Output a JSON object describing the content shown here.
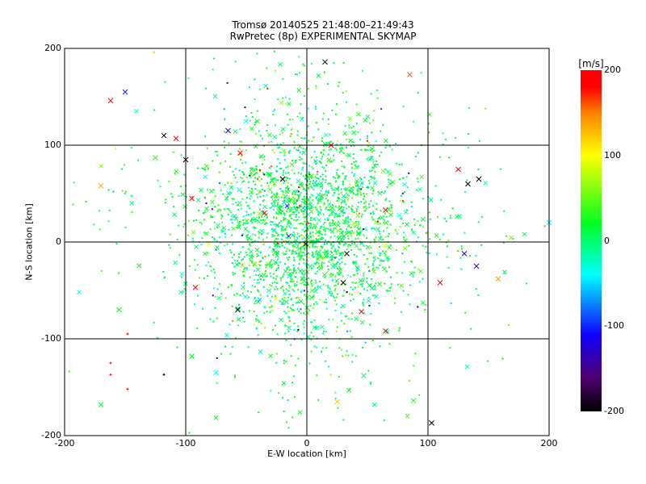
{
  "chart_data": {
    "type": "scatter",
    "title": "Tromsø 20140525 21:48:00–21:49:43",
    "subtitle": "RwPretec (8p) EXPERIMENTAL SKYMAP",
    "xlabel": "E-W location [km]",
    "ylabel": "N-S location [km]",
    "xlim": [
      -200,
      200
    ],
    "ylim": [
      -200,
      200
    ],
    "xticks": [
      "-200",
      "-100",
      "0",
      "100",
      "200"
    ],
    "yticks": [
      "-200",
      "-100",
      "0",
      "100",
      "200"
    ],
    "grid_lines_km": [
      -100,
      0,
      100
    ],
    "colorbar": {
      "label": "[m/s]",
      "range": [
        -200,
        200
      ],
      "ticks": [
        "200",
        "100",
        "0",
        "-100",
        "-200"
      ],
      "stops": [
        [
          -200,
          "#000000"
        ],
        [
          -160,
          "#500070"
        ],
        [
          -110,
          "#1000ff"
        ],
        [
          -40,
          "#00ffff"
        ],
        [
          20,
          "#00ff20"
        ],
        [
          100,
          "#ffff00"
        ],
        [
          150,
          "#ff8000"
        ],
        [
          180,
          "#ff0000"
        ],
        [
          200,
          "#ff0000"
        ]
      ]
    },
    "cloud": {
      "n": 2600,
      "center_km": [
        0,
        15
      ],
      "spread_km": [
        40,
        55
      ],
      "velocity_mean": 10,
      "velocity_spread": 25
    },
    "points": [
      [
        -150,
        155,
        -100,
        "x"
      ],
      [
        -162,
        146,
        190,
        "x"
      ],
      [
        -108,
        107,
        200,
        "x"
      ],
      [
        -118,
        110,
        -200,
        "x"
      ],
      [
        -100,
        85,
        -200,
        "x"
      ],
      [
        -170,
        58,
        130,
        "x"
      ],
      [
        -125,
        87,
        30,
        "x"
      ],
      [
        -92,
        -47,
        180,
        "x"
      ],
      [
        -155,
        -70,
        20,
        "x"
      ],
      [
        -95,
        -118,
        20,
        "x"
      ],
      [
        -170,
        -168,
        10,
        "x"
      ],
      [
        -57,
        -70,
        -200,
        "x"
      ],
      [
        -75,
        -135,
        -40,
        "x"
      ],
      [
        15,
        186,
        -200,
        "x"
      ],
      [
        85,
        173,
        160,
        "x"
      ],
      [
        20,
        100,
        180,
        "x"
      ],
      [
        -20,
        65,
        -200,
        "x"
      ],
      [
        -55,
        92,
        190,
        "x"
      ],
      [
        -95,
        45,
        180,
        "x"
      ],
      [
        125,
        75,
        190,
        "x"
      ],
      [
        133,
        60,
        -200,
        "x"
      ],
      [
        142,
        65,
        -200,
        "x"
      ],
      [
        140,
        -25,
        -150,
        "x"
      ],
      [
        110,
        -42,
        190,
        "x"
      ],
      [
        158,
        -38,
        140,
        "x"
      ],
      [
        130,
        -12,
        -120,
        "x"
      ],
      [
        -35,
        30,
        190,
        "x"
      ],
      [
        65,
        33,
        190,
        "x"
      ],
      [
        45,
        -72,
        180,
        "x"
      ],
      [
        65,
        -92,
        190,
        "x"
      ],
      [
        30,
        -42,
        -200,
        "x"
      ],
      [
        -1,
        -2,
        -200,
        "x"
      ],
      [
        33,
        -12,
        -200,
        "x"
      ],
      [
        103,
        -187,
        -200,
        "x"
      ],
      [
        88,
        -164,
        20,
        "x"
      ],
      [
        25,
        -165,
        120,
        "x"
      ],
      [
        47,
        -138,
        -10,
        "x"
      ],
      [
        200,
        20,
        -40,
        "x"
      ],
      [
        -65,
        115,
        -120,
        "x"
      ],
      [
        -148,
        -95,
        190,
        "+"
      ],
      [
        -162,
        -125,
        190,
        "+"
      ],
      [
        -148,
        -152,
        190,
        "+"
      ],
      [
        -118,
        -137,
        -200,
        "+"
      ],
      [
        -162,
        -137,
        190,
        "+"
      ]
    ]
  }
}
